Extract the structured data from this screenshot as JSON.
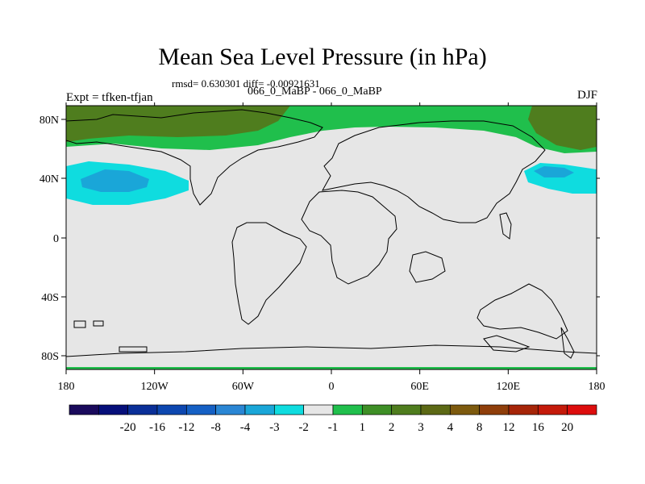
{
  "title": "Mean Sea Level Pressure (in hPa)",
  "stats": "rmsd= 0.630301 diff= -0.00921631",
  "subtitle": "066_0_MaBP - 066_0_MaBP",
  "left_label": "Expt = tfken-tfjan",
  "right_label": "DJF",
  "x_ticks": [
    "180",
    "120W",
    "60W",
    "0",
    "60E",
    "120E",
    "180"
  ],
  "y_ticks": [
    "80N",
    "40N",
    "0",
    "40S",
    "80S"
  ],
  "colorbar": {
    "colors": [
      "#1a0a5c",
      "#060f7a",
      "#0a2f98",
      "#0d47b0",
      "#1560c4",
      "#2a86d4",
      "#1aa6d8",
      "#0fdcdf",
      "#e6e6e6",
      "#20bf4c",
      "#3e8f26",
      "#4f7d1e",
      "#5c6915",
      "#7d5a0e",
      "#8f3e0a",
      "#a62508",
      "#c41a0a",
      "#dd0d0d"
    ],
    "labels": [
      "-20",
      "-16",
      "-12",
      "-8",
      "-4",
      "-3",
      "-2",
      "-1",
      "1",
      "2",
      "3",
      "4",
      "8",
      "12",
      "16",
      "20"
    ]
  }
}
